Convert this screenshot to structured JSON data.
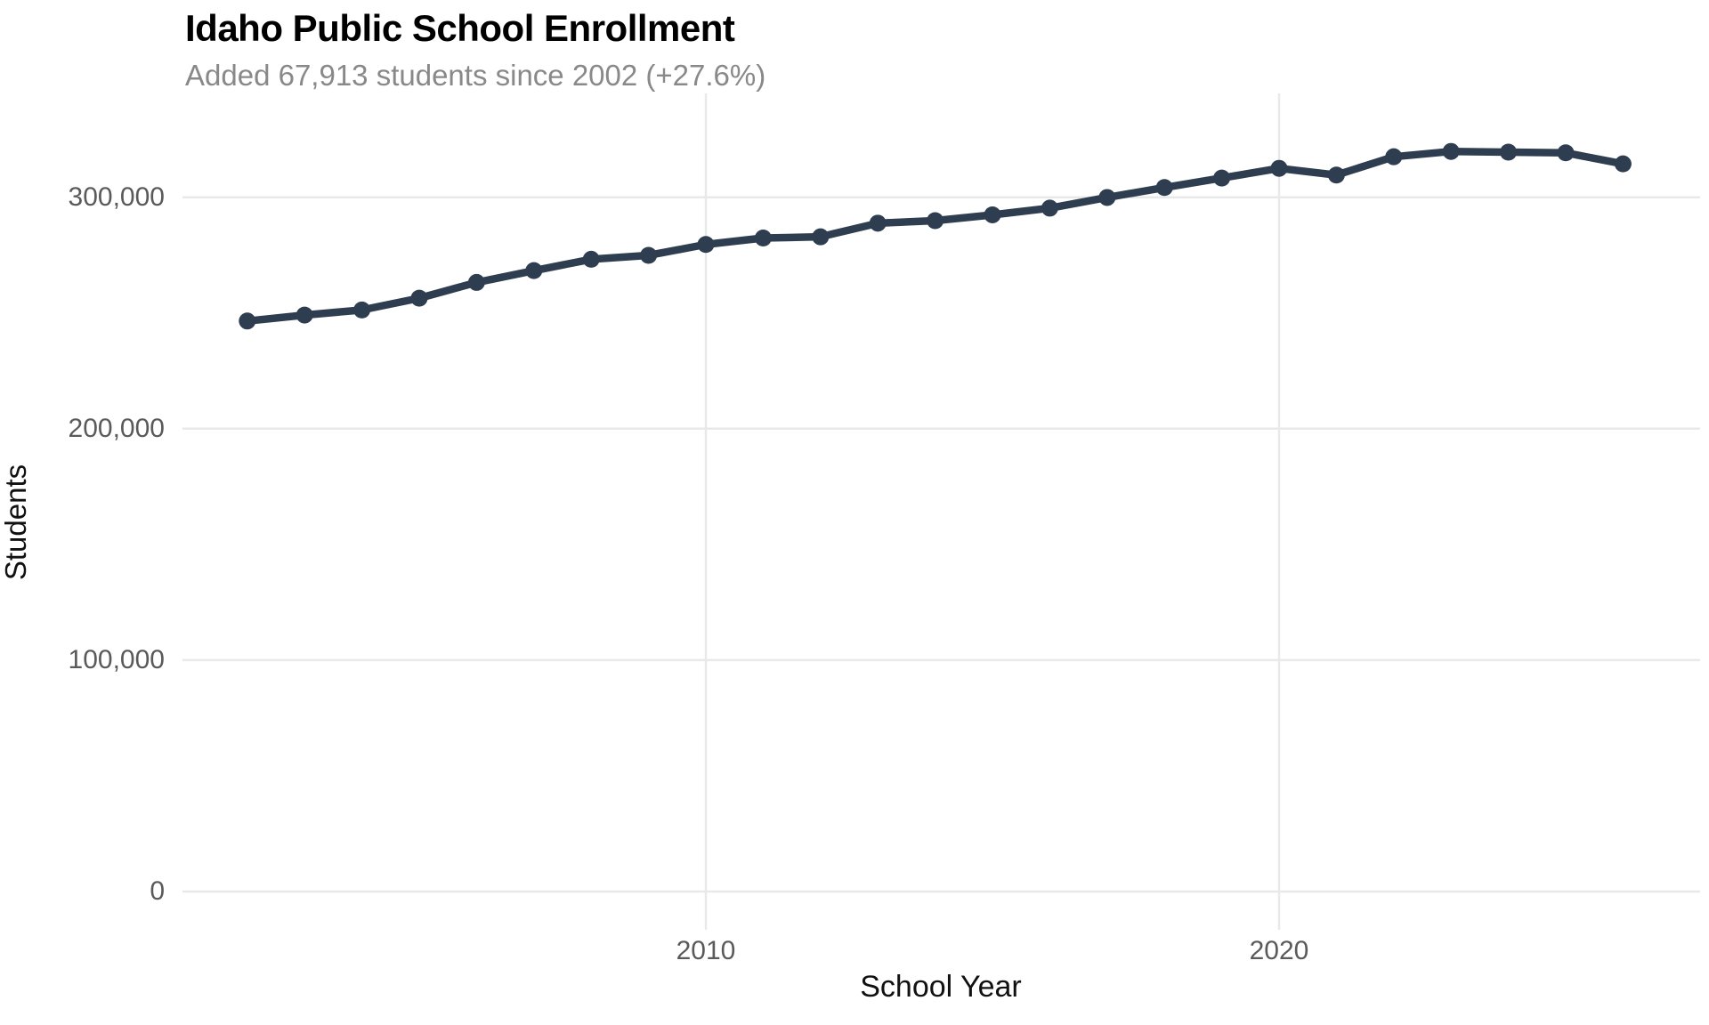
{
  "chart_data": {
    "type": "line",
    "title": "Idaho Public School Enrollment",
    "subtitle": "Added 67,913 students since 2002 (+27.6%)",
    "xlabel": "School Year",
    "ylabel": "Students",
    "series_name": "Enrollment",
    "x": [
      2002,
      2003,
      2004,
      2005,
      2006,
      2007,
      2008,
      2009,
      2010,
      2011,
      2012,
      2013,
      2014,
      2015,
      2016,
      2017,
      2018,
      2019,
      2020,
      2021,
      2022,
      2023,
      2024,
      2025,
      2026
    ],
    "values": [
      246521,
      249100,
      251300,
      256400,
      263200,
      268300,
      273200,
      274900,
      279600,
      282400,
      282900,
      288800,
      289900,
      292400,
      295300,
      299900,
      304200,
      308300,
      312500,
      309600,
      317500,
      319800,
      319500,
      319200,
      314434
    ],
    "ylim": [
      0,
      345000
    ],
    "xlim": [
      2000.9,
      2027.1
    ],
    "grid": true,
    "legend_position": "none",
    "xticks": [
      {
        "value": 2010,
        "label": "2010"
      },
      {
        "value": 2020,
        "label": "2020"
      }
    ],
    "yticks": [
      {
        "value": 0,
        "label": "0"
      },
      {
        "value": 100000,
        "label": "100,000"
      },
      {
        "value": 200000,
        "label": "200,000"
      },
      {
        "value": 300000,
        "label": "300,000"
      }
    ],
    "colors": {
      "line": "#2e3e50",
      "point": "#2e3e50",
      "grid": "#e9e9e9",
      "tick_text": "#5a5a5a",
      "axis_title_text": "#111111",
      "title_text": "#000000",
      "subtitle_text": "#898989",
      "background": "#ffffff"
    }
  }
}
